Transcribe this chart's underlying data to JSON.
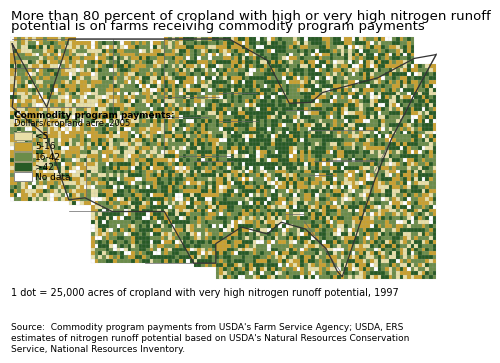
{
  "title_line1": "More than 80 percent of cropland with high or very high nitrogen runoff",
  "title_line2": "potential is on farms receiving commodity program payments",
  "title_fontsize": 9.5,
  "legend_title": "Commodity program payments:",
  "legend_subtitle": "Dollars/cropland acre, 2005",
  "legend_labels": [
    "<5",
    "5-16",
    "16-42",
    ">42",
    "No data"
  ],
  "legend_colors": [
    "#E8DFA8",
    "#C8A030",
    "#6B8C4A",
    "#275A25",
    "#FFFFFF"
  ],
  "legend_edge_colors": [
    "#999977",
    "#999977",
    "#999977",
    "#999977",
    "#888888"
  ],
  "dot_note": "1 dot = 25,000 acres of cropland with very high nitrogen runoff potential, 1997",
  "source_text": "Source:  Commodity program payments from USDA's Farm Service Agency; USDA, ERS\nestimates of nitrogen runoff potential based on USDA's Natural Resources Conservation\nService, National Resources Inventory.",
  "bg_color": "#FFFFFF",
  "map_ocean_color": "#FFFFFF",
  "state_border_color": "#666666",
  "county_border_color": "#AAAAAA"
}
